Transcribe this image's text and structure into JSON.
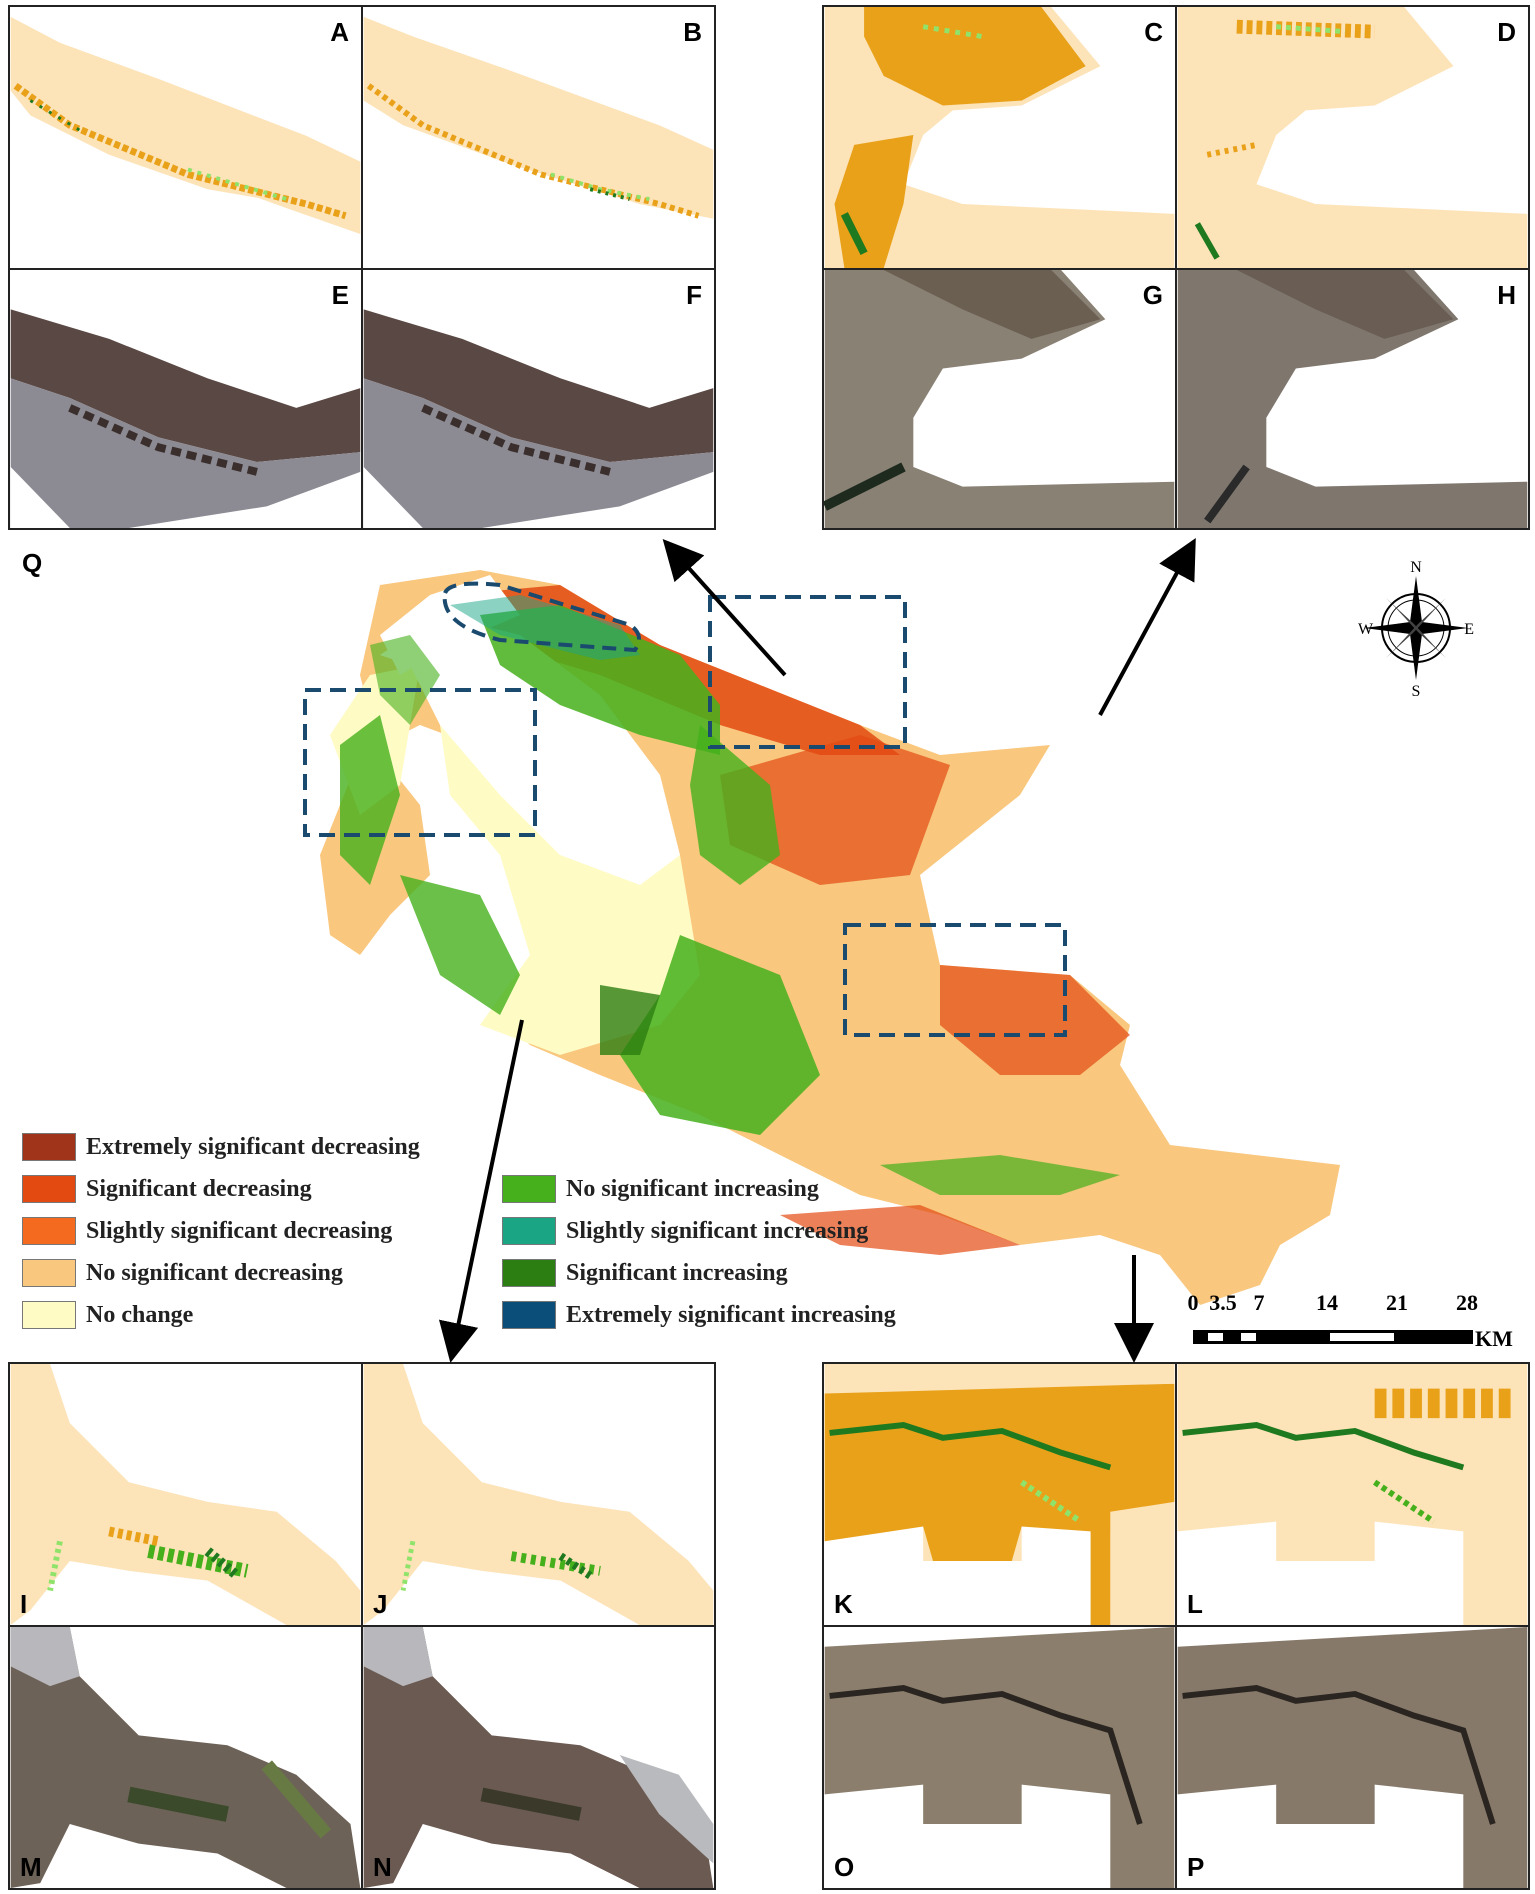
{
  "panels": [
    {
      "id": "A",
      "kind": "trend",
      "pos": "tr"
    },
    {
      "id": "B",
      "kind": "trend",
      "pos": "tr"
    },
    {
      "id": "C",
      "kind": "trend",
      "pos": "tr"
    },
    {
      "id": "D",
      "kind": "trend",
      "pos": "tr"
    },
    {
      "id": "E",
      "kind": "image",
      "pos": "tr"
    },
    {
      "id": "F",
      "kind": "image",
      "pos": "tr"
    },
    {
      "id": "G",
      "kind": "image",
      "pos": "tr"
    },
    {
      "id": "H",
      "kind": "image",
      "pos": "tr"
    },
    {
      "id": "I",
      "kind": "trend",
      "pos": "bl"
    },
    {
      "id": "J",
      "kind": "trend",
      "pos": "bl"
    },
    {
      "id": "K",
      "kind": "trend",
      "pos": "bl"
    },
    {
      "id": "L",
      "kind": "trend",
      "pos": "bl"
    },
    {
      "id": "M",
      "kind": "image",
      "pos": "bl"
    },
    {
      "id": "N",
      "kind": "image",
      "pos": "bl"
    },
    {
      "id": "O",
      "kind": "image",
      "pos": "bl"
    },
    {
      "id": "P",
      "kind": "image",
      "pos": "bl"
    }
  ],
  "main_label": "Q",
  "legend": [
    {
      "label": "Extremely significant decreasing",
      "color": "#a0341a"
    },
    {
      "label": "Significant decreasing",
      "color": "#e34a12"
    },
    {
      "label": "Slightly significant decreasing",
      "color": "#f46b1f"
    },
    {
      "label": "No significant decreasing",
      "color": "#f9c77e"
    },
    {
      "label": "No change",
      "color": "#fefbc4"
    },
    {
      "label": "No significant increasing",
      "color": "#45b01c"
    },
    {
      "label": "Slightly significant increasing",
      "color": "#1aa585"
    },
    {
      "label": "Significant increasing",
      "color": "#2d7e12"
    },
    {
      "label": "Extremely significant increasing",
      "color": "#0c4e7a"
    }
  ],
  "compass": {
    "n": "N",
    "s": "S",
    "e": "E",
    "w": "W"
  },
  "scale": {
    "ticks": [
      "0",
      "3.5",
      "7",
      "14",
      "21",
      "28"
    ],
    "unit": "KM"
  },
  "colors": {
    "tan": "#fde3b8",
    "orange": "#e9a11a",
    "lightgreen": "#8fe36b",
    "darkgreen": "#1f7a1f",
    "frame": "#1a4a6e"
  }
}
